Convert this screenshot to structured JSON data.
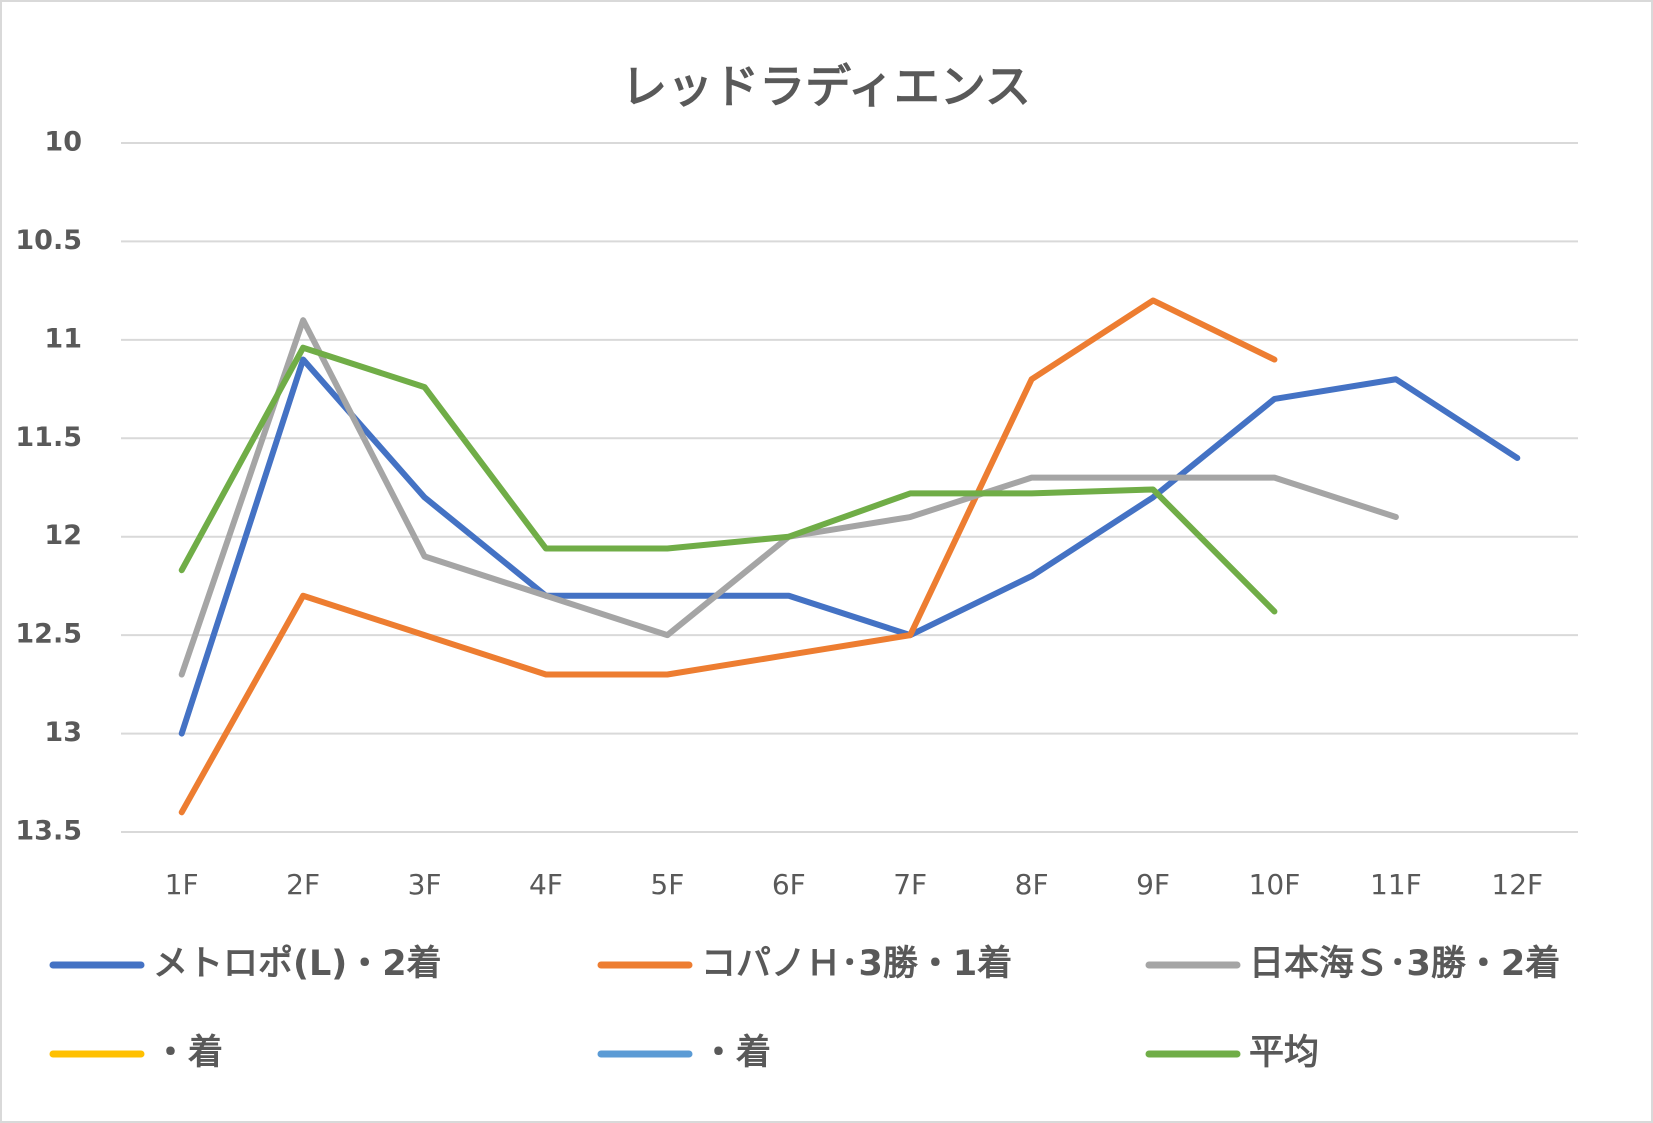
{
  "chart_data": {
    "type": "line",
    "title": "レッドラディエンス",
    "categories": [
      "1F",
      "2F",
      "3F",
      "4F",
      "5F",
      "6F",
      "7F",
      "8F",
      "9F",
      "10F",
      "11F",
      "12F"
    ],
    "series": [
      {
        "name": "メトロポ(L)・2着",
        "color": "#4472c4",
        "values": [
          13.0,
          11.1,
          11.8,
          12.3,
          12.3,
          12.3,
          12.5,
          12.2,
          11.8,
          11.3,
          11.2,
          11.6
        ]
      },
      {
        "name": "コパノＨ･3勝・1着",
        "color": "#ed7d31",
        "values": [
          13.4,
          12.3,
          12.5,
          12.7,
          12.7,
          12.6,
          12.5,
          11.2,
          10.8,
          11.1,
          null,
          null
        ]
      },
      {
        "name": "日本海Ｓ･3勝・2着",
        "color": "#a5a5a5",
        "values": [
          12.7,
          10.9,
          12.1,
          12.3,
          12.5,
          12.0,
          11.9,
          11.7,
          11.7,
          11.7,
          11.9,
          null
        ]
      },
      {
        "name": "・着",
        "color": "#ffc000",
        "values": [
          null,
          null,
          null,
          null,
          null,
          null,
          null,
          null,
          null,
          null,
          null,
          null
        ]
      },
      {
        "name": "・着",
        "color": "#5b9bd5",
        "values": [
          null,
          null,
          null,
          null,
          null,
          null,
          null,
          null,
          null,
          null,
          null,
          null
        ]
      },
      {
        "name": "平均",
        "color": "#70ad47",
        "values": [
          12.17,
          11.04,
          11.24,
          12.06,
          12.06,
          12.0,
          11.78,
          11.78,
          11.76,
          12.38,
          null,
          null
        ]
      }
    ],
    "ylim": [
      10,
      13.5
    ],
    "yticks": [
      10,
      10.5,
      11,
      11.5,
      12,
      12.5,
      13,
      13.5
    ],
    "y_inverted": true,
    "grid": true,
    "legend": "bottom"
  }
}
